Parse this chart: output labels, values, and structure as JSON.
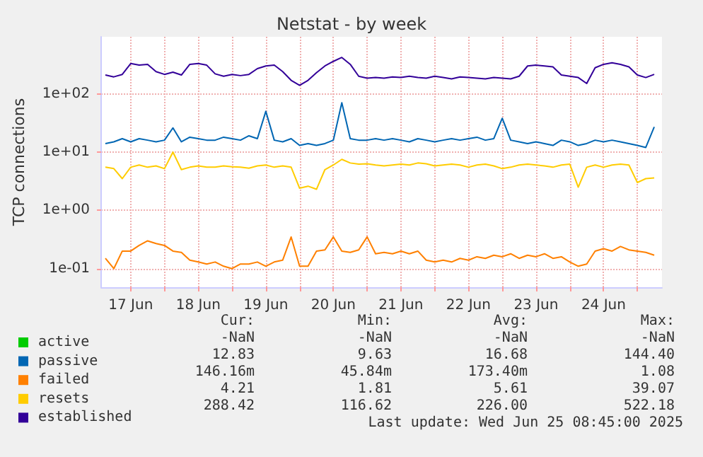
{
  "chart_data": {
    "type": "line",
    "title": "Netstat - by week",
    "ylabel": "TCP connections",
    "log": "y",
    "grid": true,
    "legend": "bottom left",
    "marker": "none",
    "xlim": [
      "2025-06-17T01:30",
      "2025-06-25T08:45"
    ],
    "xticks": [
      {
        "value": "2025-06-17T12:00",
        "label": "17 Jun"
      },
      {
        "value": "2025-06-18T00:00",
        "label": null
      },
      {
        "value": "2025-06-18T12:00",
        "label": "18 Jun"
      },
      {
        "value": "2025-06-19T00:00",
        "label": null
      },
      {
        "value": "2025-06-19T12:00",
        "label": "19 Jun"
      },
      {
        "value": "2025-06-20T00:00",
        "label": null
      },
      {
        "value": "2025-06-20T12:00",
        "label": "20 Jun"
      },
      {
        "value": "2025-06-21T00:00",
        "label": null
      },
      {
        "value": "2025-06-21T12:00",
        "label": "21 Jun"
      },
      {
        "value": "2025-06-22T00:00",
        "label": null
      },
      {
        "value": "2025-06-22T12:00",
        "label": "22 Jun"
      },
      {
        "value": "2025-06-23T00:00",
        "label": null
      },
      {
        "value": "2025-06-23T12:00",
        "label": "23 Jun"
      },
      {
        "value": "2025-06-24T00:00",
        "label": null
      },
      {
        "value": "2025-06-24T12:00",
        "label": "24 Jun"
      },
      {
        "value": "2025-06-25T00:00",
        "label": null
      }
    ],
    "ylim": [
      0.048,
      950
    ],
    "yticks": [
      {
        "value": 0.1,
        "label": "1e-01"
      },
      {
        "value": 1,
        "label": "1e+00"
      },
      {
        "value": 10,
        "label": "1e+01"
      },
      {
        "value": 100,
        "label": "1e+02"
      }
    ],
    "x": [
      "2025-06-17T03:00",
      "2025-06-17T06:00",
      "2025-06-17T09:00",
      "2025-06-17T12:00",
      "2025-06-17T15:00",
      "2025-06-17T18:00",
      "2025-06-17T21:00",
      "2025-06-18T00:00",
      "2025-06-18T03:00",
      "2025-06-18T06:00",
      "2025-06-18T09:00",
      "2025-06-18T12:00",
      "2025-06-18T15:00",
      "2025-06-18T18:00",
      "2025-06-18T21:00",
      "2025-06-19T00:00",
      "2025-06-19T03:00",
      "2025-06-19T06:00",
      "2025-06-19T09:00",
      "2025-06-19T12:00",
      "2025-06-19T15:00",
      "2025-06-19T18:00",
      "2025-06-19T21:00",
      "2025-06-20T00:00",
      "2025-06-20T03:00",
      "2025-06-20T06:00",
      "2025-06-20T09:00",
      "2025-06-20T12:00",
      "2025-06-20T15:00",
      "2025-06-20T18:00",
      "2025-06-20T21:00",
      "2025-06-21T00:00",
      "2025-06-21T03:00",
      "2025-06-21T06:00",
      "2025-06-21T09:00",
      "2025-06-21T12:00",
      "2025-06-21T15:00",
      "2025-06-21T18:00",
      "2025-06-21T21:00",
      "2025-06-22T00:00",
      "2025-06-22T03:00",
      "2025-06-22T06:00",
      "2025-06-22T09:00",
      "2025-06-22T12:00",
      "2025-06-22T15:00",
      "2025-06-22T18:00",
      "2025-06-22T21:00",
      "2025-06-23T00:00",
      "2025-06-23T03:00",
      "2025-06-23T06:00",
      "2025-06-23T09:00",
      "2025-06-23T12:00",
      "2025-06-23T15:00",
      "2025-06-23T18:00",
      "2025-06-23T21:00",
      "2025-06-24T00:00",
      "2025-06-24T03:00",
      "2025-06-24T06:00",
      "2025-06-24T09:00",
      "2025-06-24T12:00",
      "2025-06-24T15:00",
      "2025-06-24T18:00",
      "2025-06-24T21:00",
      "2025-06-25T00:00",
      "2025-06-25T03:00",
      "2025-06-25T06:00"
    ],
    "series": [
      {
        "name": "active",
        "color": "#00cc00",
        "values": [
          null,
          null,
          null,
          null,
          null,
          null,
          null,
          null,
          null,
          null,
          null,
          null,
          null,
          null,
          null,
          null,
          null,
          null,
          null,
          null,
          null,
          null,
          null,
          null,
          null,
          null,
          null,
          null,
          null,
          null,
          null,
          null,
          null,
          null,
          null,
          null,
          null,
          null,
          null,
          null,
          null,
          null,
          null,
          null,
          null,
          null,
          null,
          null,
          null,
          null,
          null,
          null,
          null,
          null,
          null,
          null,
          null,
          null,
          null,
          null,
          null,
          null,
          null,
          null,
          null,
          null
        ]
      },
      {
        "name": "passive",
        "color": "#0066b3",
        "values": [
          14,
          15,
          17,
          15,
          17,
          16,
          15,
          16,
          26,
          15,
          18,
          17,
          16,
          16,
          18,
          17,
          16,
          19,
          17,
          50,
          16,
          15,
          17,
          13,
          14,
          13,
          14,
          16,
          70,
          17,
          16,
          16,
          17,
          16,
          17,
          16,
          15,
          17,
          16,
          15,
          16,
          17,
          16,
          17,
          18,
          16,
          17,
          38,
          16,
          15,
          14,
          15,
          14,
          13,
          16,
          15,
          13,
          14,
          16,
          15,
          16,
          15,
          14,
          13,
          12,
          27
        ]
      },
      {
        "name": "failed",
        "color": "#ff8000",
        "values": [
          0.15,
          0.1,
          0.2,
          0.2,
          0.25,
          0.3,
          0.27,
          0.25,
          0.2,
          0.19,
          0.14,
          0.13,
          0.12,
          0.13,
          0.11,
          0.1,
          0.12,
          0.12,
          0.13,
          0.11,
          0.13,
          0.14,
          0.35,
          0.11,
          0.11,
          0.2,
          0.21,
          0.35,
          0.2,
          0.19,
          0.21,
          0.35,
          0.18,
          0.19,
          0.18,
          0.2,
          0.18,
          0.2,
          0.14,
          0.13,
          0.14,
          0.13,
          0.15,
          0.14,
          0.16,
          0.15,
          0.17,
          0.16,
          0.18,
          0.15,
          0.17,
          0.16,
          0.18,
          0.15,
          0.16,
          0.13,
          0.11,
          0.12,
          0.2,
          0.22,
          0.2,
          0.24,
          0.21,
          0.2,
          0.19,
          0.17
        ]
      },
      {
        "name": "resets",
        "color": "#ffcc00",
        "values": [
          5.5,
          5.2,
          3.5,
          5.5,
          6,
          5.5,
          5.8,
          5.2,
          10,
          5,
          5.5,
          5.8,
          5.5,
          5.5,
          5.8,
          5.6,
          5.5,
          5.3,
          5.8,
          6,
          5.5,
          5.8,
          5.5,
          2.4,
          2.6,
          2.3,
          5,
          6,
          7.5,
          6.5,
          6.2,
          6.3,
          6,
          5.8,
          6,
          6.2,
          6,
          6.5,
          6.3,
          5.8,
          6,
          6.2,
          6,
          5.5,
          6,
          6.2,
          5.8,
          5.2,
          5.5,
          6,
          6.2,
          6,
          5.8,
          5.5,
          6,
          6.2,
          2.5,
          5.5,
          6,
          5.5,
          6,
          6.2,
          6,
          3,
          3.5,
          3.6
        ]
      },
      {
        "name": "established",
        "color": "#330099",
        "values": [
          210,
          195,
          215,
          330,
          310,
          320,
          240,
          215,
          235,
          210,
          320,
          330,
          310,
          220,
          200,
          215,
          205,
          215,
          270,
          300,
          310,
          240,
          170,
          140,
          170,
          230,
          300,
          360,
          420,
          320,
          200,
          185,
          190,
          185,
          195,
          190,
          200,
          190,
          185,
          200,
          190,
          180,
          195,
          190,
          185,
          180,
          190,
          185,
          180,
          200,
          300,
          310,
          300,
          290,
          210,
          200,
          190,
          150,
          280,
          320,
          340,
          320,
          290,
          210,
          190,
          215
        ]
      }
    ],
    "annotations": [
      "Cur:",
      "Min:",
      "Avg:",
      "Max:",
      "-NaN",
      "-NaN",
      "-NaN",
      "-NaN",
      "12.83",
      "9.63",
      "16.68",
      "144.40",
      "146.16m",
      "45.84m",
      "173.40m",
      "1.08",
      "4.21",
      "1.81",
      "5.61",
      "39.07",
      "288.42",
      "116.62",
      "226.00",
      "522.18",
      "Last update: Wed Jun 25 08:45:00 2025"
    ]
  }
}
